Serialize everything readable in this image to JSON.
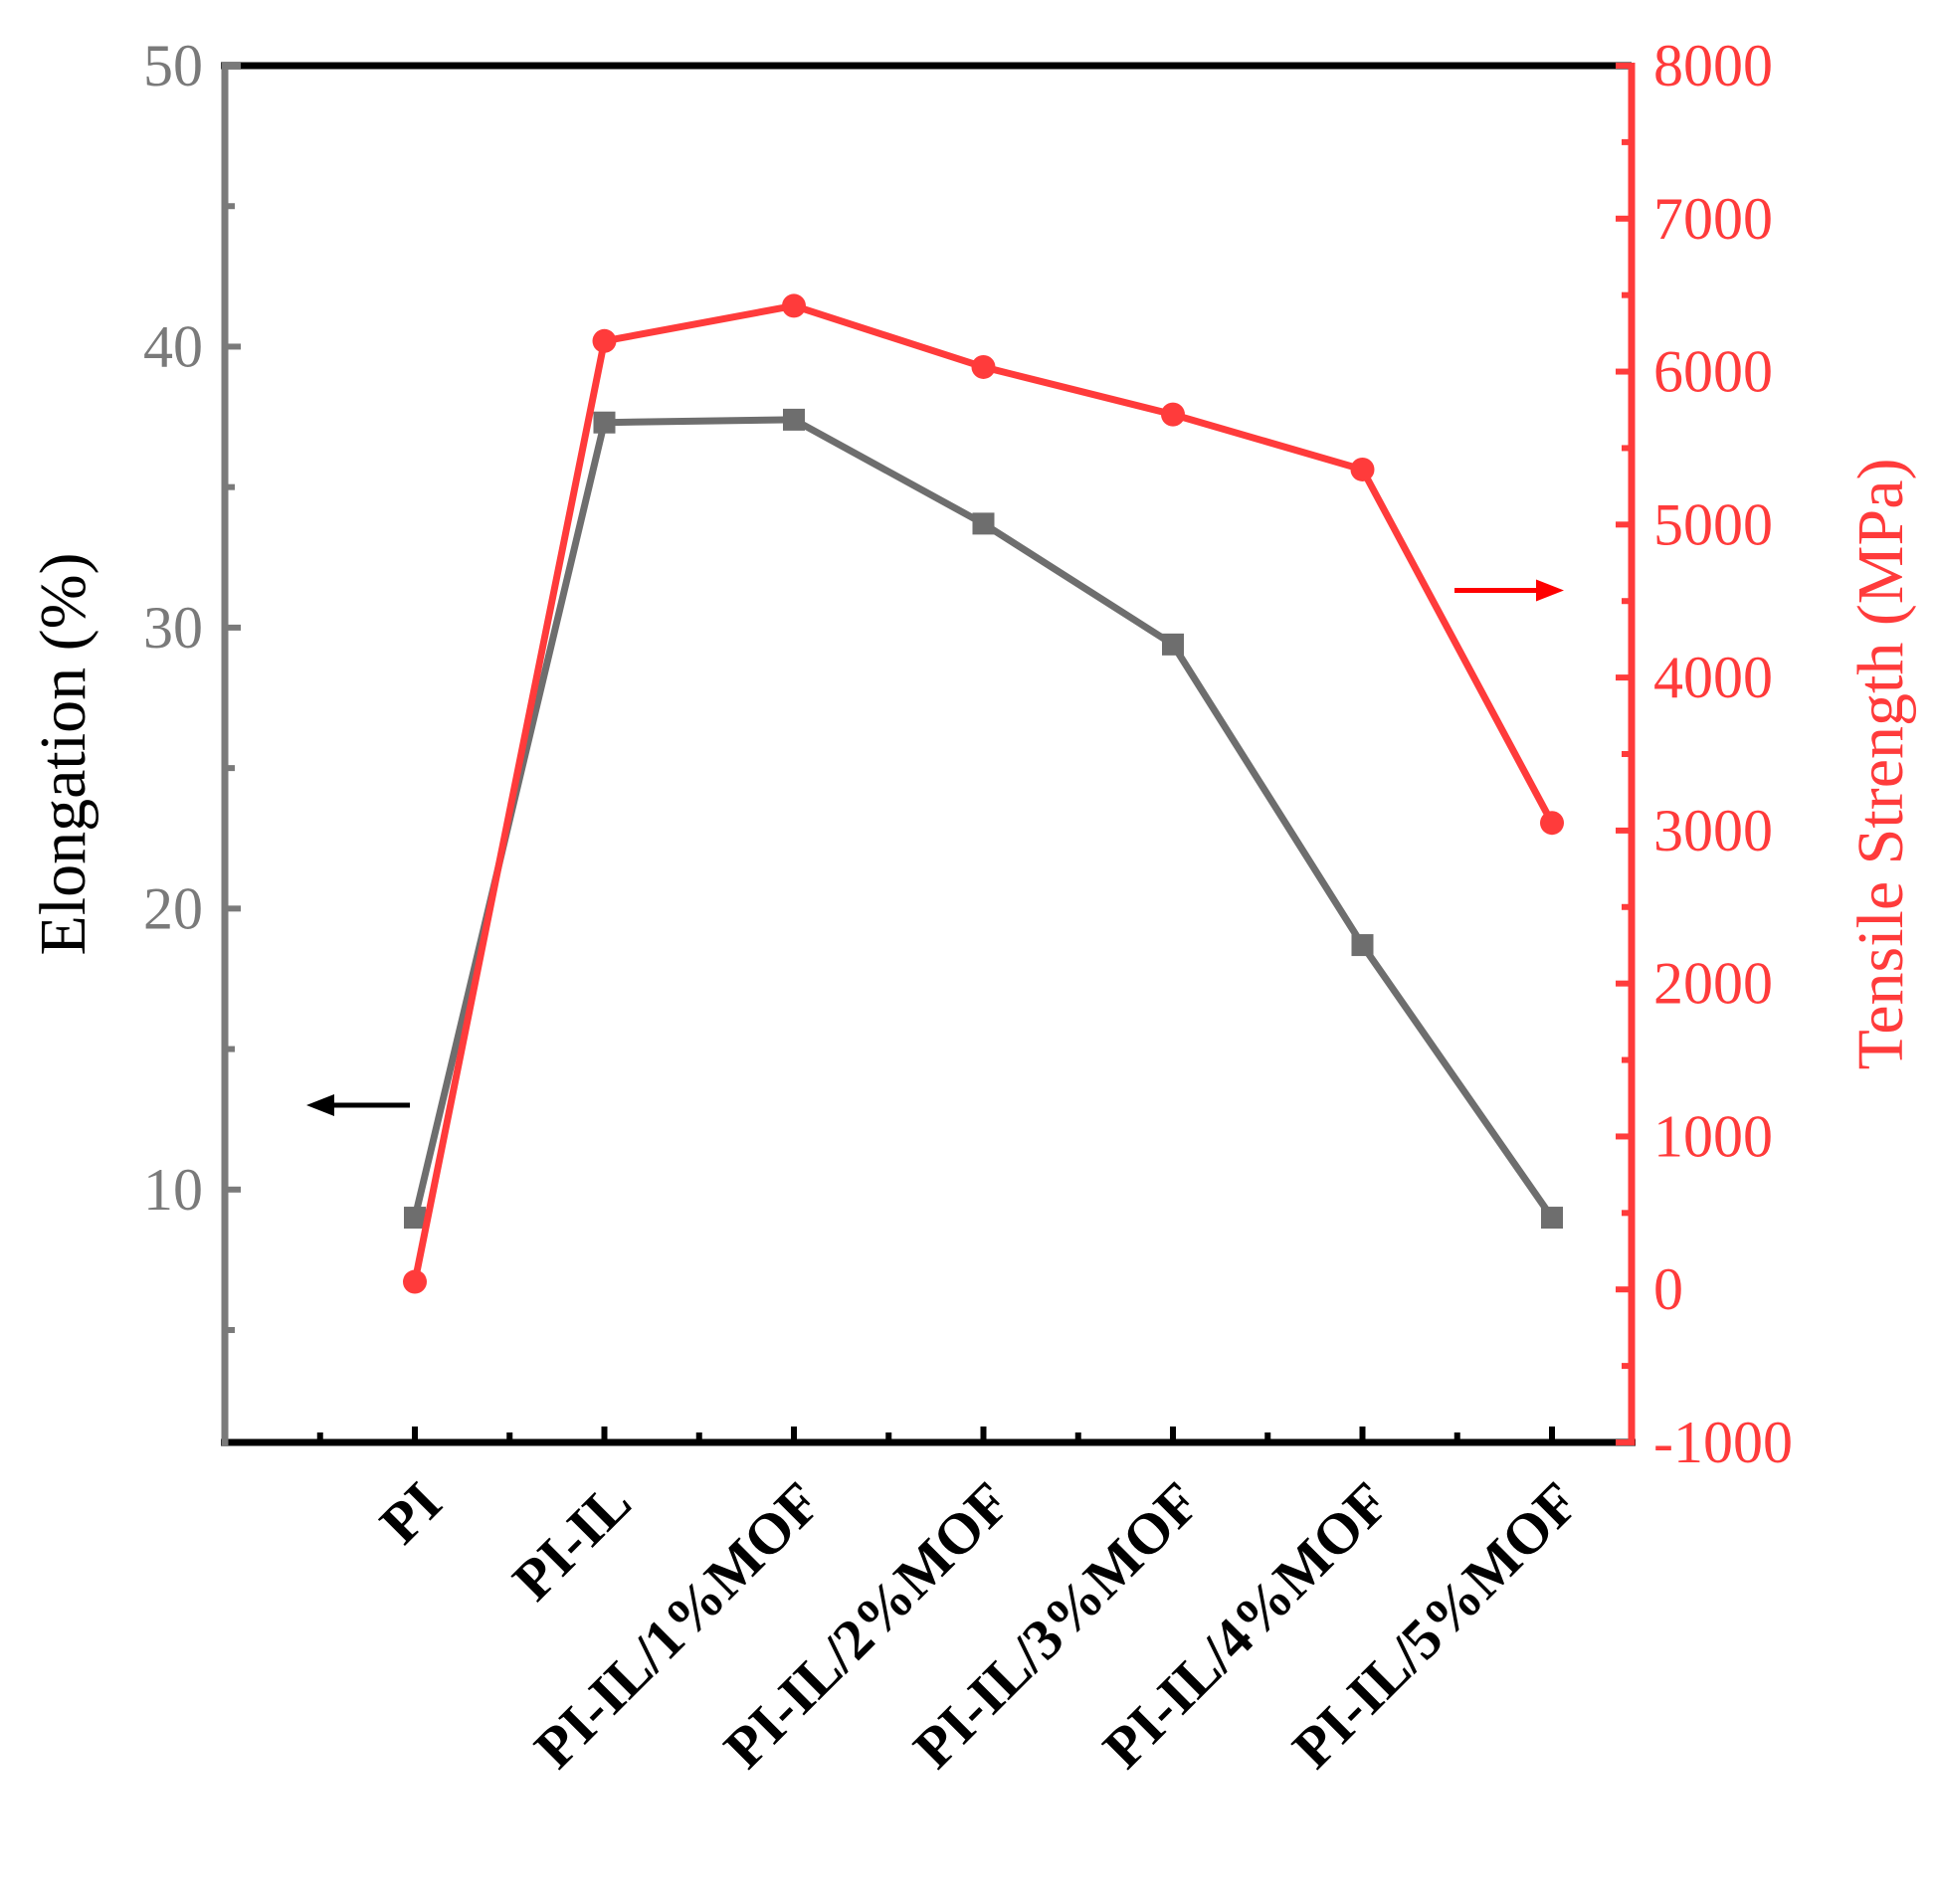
{
  "chart_data": {
    "type": "line",
    "categories": [
      "PI",
      "PI-IL",
      "PI-IL/1%MOF",
      "PI-IL/2%MOF",
      "PI-IL/3%MOF",
      "PI-IL/4%MOF",
      "PI-IL/5%MOF"
    ],
    "series": [
      {
        "name": "Elongation",
        "axis": "left",
        "marker": "square",
        "values": [
          9.0,
          37.3,
          37.4,
          33.7,
          29.4,
          18.7,
          9.0
        ]
      },
      {
        "name": "Tensile Strength",
        "axis": "right",
        "marker": "circle",
        "values": [
          50,
          6200,
          6430,
          6030,
          5720,
          5360,
          3050
        ]
      }
    ],
    "left_axis": {
      "label": "Elongation (%)",
      "ylim": [
        1,
        50
      ],
      "ticks": [
        10,
        20,
        30,
        40,
        50
      ],
      "tick_labels": [
        "10",
        "20",
        "30",
        "40",
        "50"
      ]
    },
    "right_axis": {
      "label": "Tensile Strength (MPa)",
      "ylim": [
        -1000,
        8000
      ],
      "ticks": [
        -1000,
        0,
        1000,
        2000,
        3000,
        4000,
        5000,
        6000,
        7000,
        8000
      ],
      "tick_labels": [
        "-1000",
        "0",
        "1000",
        "2000",
        "3000",
        "4000",
        "5000",
        "6000",
        "7000",
        "8000"
      ]
    },
    "annotations": [
      {
        "type": "arrow",
        "direction": "left",
        "refers_to": "Elongation",
        "y_left": 13
      },
      {
        "type": "arrow",
        "direction": "right",
        "refers_to": "Tensile Strength",
        "y_right": 4570
      }
    ],
    "colors": {
      "elongation": "#6e6e6e",
      "tensile": "#ff3b3b",
      "left_axis": "#7a7a7a",
      "frame": "#000000",
      "right_arrow": "#ff0000",
      "left_arrow": "#000000"
    },
    "grid": false,
    "legend": "none"
  }
}
